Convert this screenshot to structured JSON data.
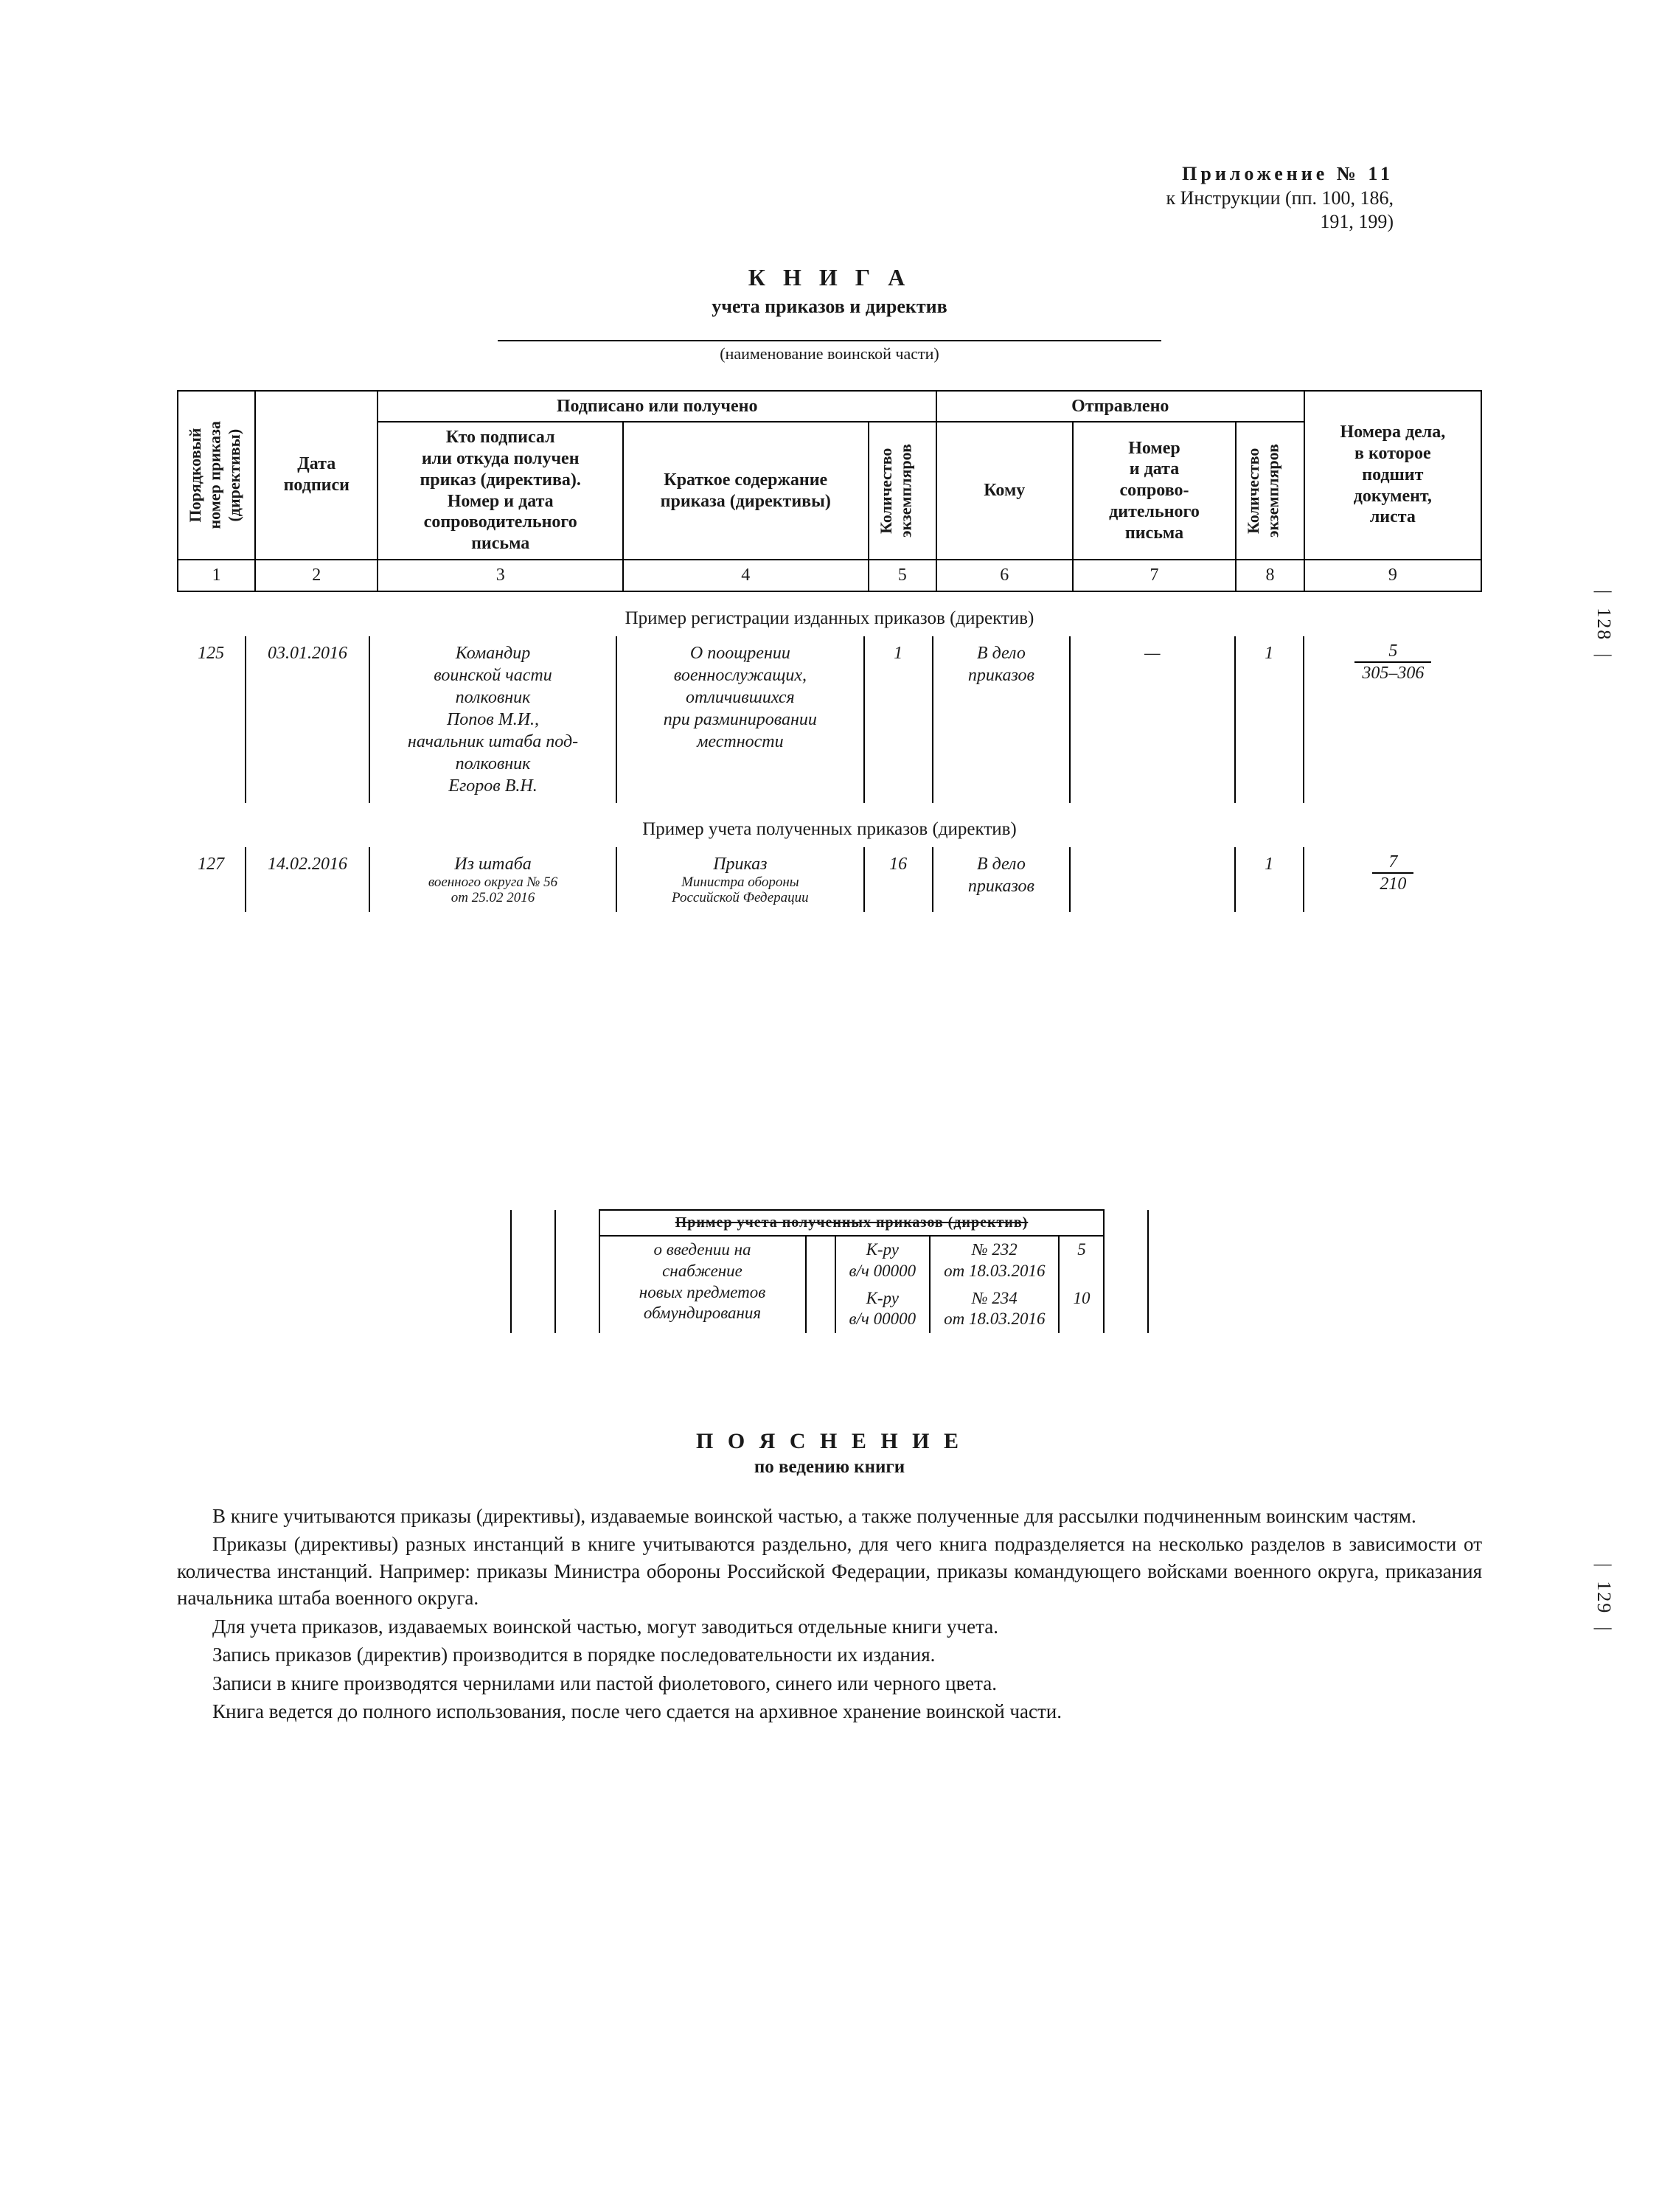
{
  "appendix": {
    "line1": "Приложение  № 11",
    "line2": "к Инструкции (пп. 100, 186,",
    "line3": "191, 199)"
  },
  "title": "К Н И Г А",
  "subtitle": "учета приказов и директив",
  "unit_caption": "(наименование воинской части)",
  "header": {
    "group_signed": "Подписано или получено",
    "group_sent": "Отправлено",
    "col1": "Порядковый\nномер приказа\n(директивы)",
    "col2": "Дата\nподписи",
    "col3": "Кто подписал\nили откуда получен\nприказ (директива).\nНомер и дата\nсопроводительного\nписьма",
    "col4": "Краткое содержание\nприказа (директивы)",
    "col5": "Количество\nэкземпляров",
    "col6": "Кому",
    "col7": "Номер\nи дата\nсопрово-\nдительного\nписьма",
    "col8": "Количество\nэкземпляров",
    "col9": "Номера дела,\nв которое\nподшит\nдокумент,\nлиста"
  },
  "colnums": [
    "1",
    "2",
    "3",
    "4",
    "5",
    "6",
    "7",
    "8",
    "9"
  ],
  "section1_label": "Пример регистрации изданных приказов (директив)",
  "row1": {
    "c1": "125",
    "c2": "03.01.2016",
    "c3": "Командир\nвоинской части\nполковник\nПопов М.И.,\nначальник штаба под-\nполковник\nЕгоров В.Н.",
    "c4": "О поощрении\nвоеннослужащих,\nотличившихся\nпри разминировании\nместности",
    "c5": "1",
    "c6": "В дело\nприказов",
    "c7": "—",
    "c8": "1",
    "frac_num": "5",
    "frac_den": "305–306"
  },
  "section2_label": "Пример учета полученных приказов (директив)",
  "row2": {
    "c1": "127",
    "c2": "14.02.2016",
    "c3_a": "Из штаба",
    "c3_b": "военного округа № 56\nот 25.02 2016",
    "c4_a": "Приказ",
    "c4_b": "Министра обороны\nРоссийской Федерации",
    "c5": "16",
    "c6": "В дело\nприказов",
    "c7": "",
    "c8": "1",
    "frac_num": "7",
    "frac_den": "210"
  },
  "fragment": {
    "header_cut": "Пример учета полученных приказов (директив)",
    "c4": "о введении на снабжение\nновых предметов\nобмундирования",
    "r1_c6": "К-ру\nв/ч 00000",
    "r1_c7": "№ 232\nот 18.03.2016",
    "r1_c8": "5",
    "r2_c6": "К-ру\nв/ч 00000",
    "r2_c7": "№ 234\nот 18.03.2016",
    "r2_c8": "10"
  },
  "explain_title": "П О Я С Н Е Н И Е",
  "explain_subtitle": "по ведению книги",
  "paragraphs": [
    "В книге учитываются приказы (директивы), издаваемые воинской частью, а также полученные для рассылки подчиненным воинским частям.",
    "Приказы (директивы) разных инстанций в книге учитываются раздельно, для чего книга подразделяется на несколько разделов в зависимости от количества инстанций. Например: приказы Министра обороны Российской Федерации, приказы командующего войсками военного округа, приказания начальника штаба военного округа.",
    "Для учета приказов, издаваемых воинской частью, могут заводиться отдельные книги учета.",
    "Запись приказов (директив) производится в порядке последовательности их издания.",
    "Записи в книге производятся чернилами или пастой фиолетового, синего или черного цвета.",
    "Книга ведется до полного использования, после чего сдается на архивное хранение воинской части."
  ],
  "page_numbers": {
    "p1": "128",
    "p2": "129"
  }
}
